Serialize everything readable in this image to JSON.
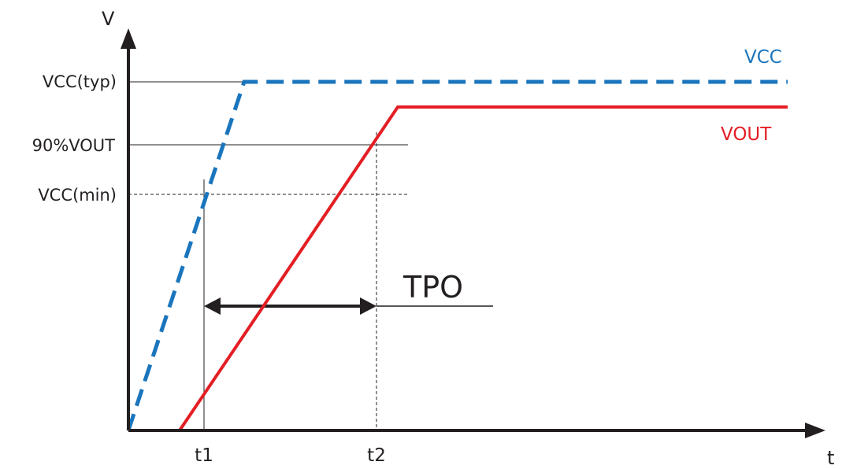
{
  "axes": {
    "y_label": "V",
    "x_label": "t"
  },
  "levels": {
    "vcc_typ": "VCC(typ)",
    "vout_90": "90%VOUT",
    "vcc_min": "VCC(min)"
  },
  "times": {
    "t1": "t1",
    "t2": "t2"
  },
  "interval": {
    "label": "TPO"
  },
  "signals": {
    "vcc": {
      "name": "VCC",
      "color": "#1a75bc",
      "style": "dashed"
    },
    "vout": {
      "name": "VOUT",
      "color": "#e31e24",
      "style": "solid"
    }
  },
  "colors": {
    "axis": "#231f20",
    "guide": "#231f20"
  }
}
